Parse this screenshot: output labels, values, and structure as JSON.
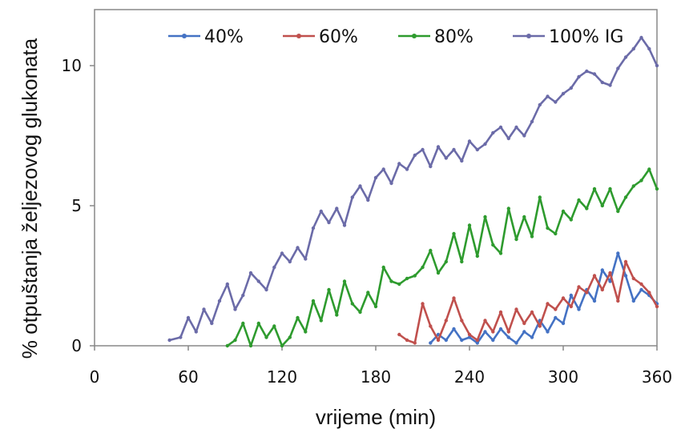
{
  "chart_data": {
    "type": "line",
    "xlabel": "vrijeme (min)",
    "ylabel": "% otpuštanja željezovog glukonata",
    "xlim": [
      0,
      360
    ],
    "ylim": [
      0,
      12
    ],
    "x_ticks": [
      0,
      60,
      120,
      180,
      240,
      300,
      360
    ],
    "y_ticks": [
      0,
      5,
      10
    ],
    "grid": false,
    "legend_position": "top",
    "series": [
      {
        "name": "40%",
        "color": "#4472c4",
        "x": [
          215,
          220,
          225,
          230,
          235,
          240,
          245,
          250,
          255,
          260,
          265,
          270,
          275,
          280,
          285,
          290,
          295,
          300,
          305,
          310,
          315,
          320,
          325,
          330,
          335,
          340,
          345,
          350,
          355,
          360
        ],
        "y": [
          0.1,
          0.4,
          0.2,
          0.6,
          0.2,
          0.3,
          0.1,
          0.5,
          0.2,
          0.6,
          0.3,
          0.1,
          0.5,
          0.3,
          0.9,
          0.5,
          1.0,
          0.8,
          1.8,
          1.3,
          2.0,
          1.6,
          2.7,
          2.3,
          3.3,
          2.5,
          1.6,
          2.0,
          1.8,
          1.5
        ]
      },
      {
        "name": "60%",
        "color": "#c0504d",
        "x": [
          195,
          200,
          205,
          210,
          215,
          220,
          225,
          230,
          235,
          240,
          245,
          250,
          255,
          260,
          265,
          270,
          275,
          280,
          285,
          290,
          295,
          300,
          305,
          310,
          315,
          320,
          325,
          330,
          335,
          340,
          345,
          350,
          355,
          360
        ],
        "y": [
          0.4,
          0.2,
          0.1,
          1.5,
          0.7,
          0.2,
          0.9,
          1.7,
          0.9,
          0.4,
          0.2,
          0.9,
          0.5,
          1.2,
          0.5,
          1.3,
          0.8,
          1.2,
          0.7,
          1.5,
          1.3,
          1.7,
          1.4,
          2.1,
          1.9,
          2.5,
          2.0,
          2.6,
          1.6,
          3.0,
          2.4,
          2.2,
          1.9,
          1.4
        ]
      },
      {
        "name": "80%",
        "color": "#2e9b2e",
        "x": [
          85,
          90,
          95,
          100,
          105,
          110,
          115,
          120,
          125,
          130,
          135,
          140,
          145,
          150,
          155,
          160,
          165,
          170,
          175,
          180,
          185,
          190,
          195,
          200,
          205,
          210,
          215,
          220,
          225,
          230,
          235,
          240,
          245,
          250,
          255,
          260,
          265,
          270,
          275,
          280,
          285,
          290,
          295,
          300,
          305,
          310,
          315,
          320,
          325,
          330,
          335,
          340,
          345,
          350,
          355,
          360
        ],
        "y": [
          0.0,
          0.2,
          0.8,
          0.0,
          0.8,
          0.3,
          0.7,
          0.0,
          0.3,
          1.0,
          0.5,
          1.6,
          0.9,
          2.0,
          1.1,
          2.3,
          1.5,
          1.2,
          1.9,
          1.4,
          2.8,
          2.3,
          2.2,
          2.4,
          2.5,
          2.8,
          3.4,
          2.6,
          3.0,
          4.0,
          3.0,
          4.3,
          3.2,
          4.6,
          3.6,
          3.3,
          4.9,
          3.8,
          4.6,
          3.9,
          5.3,
          4.2,
          4.0,
          4.8,
          4.5,
          5.2,
          4.9,
          5.6,
          5.0,
          5.6,
          4.8,
          5.3,
          5.7,
          5.9,
          6.3,
          5.6
        ]
      },
      {
        "name": "100% IG",
        "color": "#6b6ba8",
        "x": [
          48,
          55,
          60,
          65,
          70,
          75,
          80,
          85,
          90,
          95,
          100,
          105,
          110,
          115,
          120,
          125,
          130,
          135,
          140,
          145,
          150,
          155,
          160,
          165,
          170,
          175,
          180,
          185,
          190,
          195,
          200,
          205,
          210,
          215,
          220,
          225,
          230,
          235,
          240,
          245,
          250,
          255,
          260,
          265,
          270,
          275,
          280,
          285,
          290,
          295,
          300,
          305,
          310,
          315,
          320,
          325,
          330,
          335,
          340,
          345,
          350,
          355,
          360
        ],
        "y": [
          0.2,
          0.3,
          1.0,
          0.5,
          1.3,
          0.8,
          1.6,
          2.2,
          1.3,
          1.8,
          2.6,
          2.3,
          2.0,
          2.8,
          3.3,
          3.0,
          3.5,
          3.1,
          4.2,
          4.8,
          4.4,
          4.9,
          4.3,
          5.3,
          5.7,
          5.2,
          6.0,
          6.3,
          5.8,
          6.5,
          6.3,
          6.8,
          7.0,
          6.4,
          7.1,
          6.7,
          7.0,
          6.6,
          7.3,
          7.0,
          7.2,
          7.6,
          7.8,
          7.4,
          7.8,
          7.5,
          8.0,
          8.6,
          8.9,
          8.7,
          9.0,
          9.2,
          9.6,
          9.8,
          9.7,
          9.4,
          9.3,
          9.9,
          10.3,
          10.6,
          11.0,
          10.6,
          10.0
        ]
      }
    ]
  }
}
